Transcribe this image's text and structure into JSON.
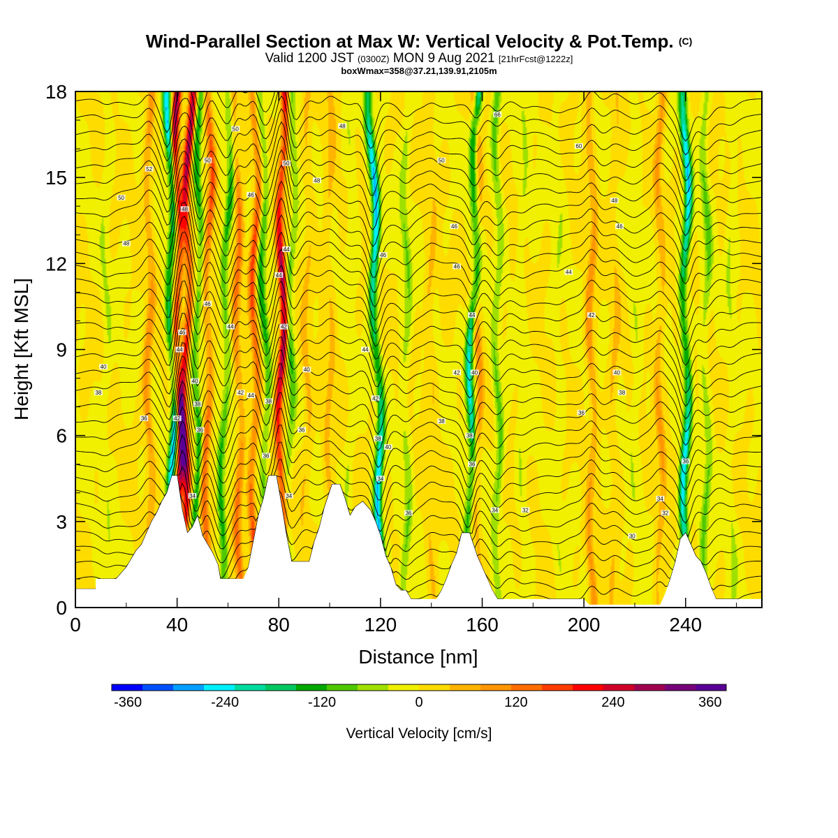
{
  "title": {
    "line1": "Wind-Parallel Section at Max W: Vertical Velocity & Pot.Temp.",
    "copyright_mark": "(C)",
    "line2_a": "Valid 1200 JST",
    "line2_b": "(0300Z)",
    "line2_c": "MON 9 Aug 2021",
    "line2_d": "[21hrFcst@1222z]",
    "line3": "boxWmax=358@37.21,139.91,2105m"
  },
  "chart_data": {
    "type": "heatmap",
    "xlabel": "Distance [nm]",
    "ylabel": "Height [Kft MSL]",
    "xlim": [
      0,
      270
    ],
    "ylim": [
      0,
      18
    ],
    "x_ticks": [
      "0",
      "40",
      "80",
      "120",
      "160",
      "200",
      "240"
    ],
    "y_ticks": [
      "0",
      "3",
      "6",
      "9",
      "12",
      "15",
      "18"
    ],
    "colorbar": {
      "label": "Vertical Velocity [cm/s]",
      "range": [
        -380,
        380
      ],
      "tick_labels": [
        "-360",
        "-240",
        "-120",
        "0",
        "120",
        "240",
        "360"
      ],
      "colors": [
        "#0000ff",
        "#0050ff",
        "#00a0ff",
        "#00f0ff",
        "#00dca0",
        "#00c860",
        "#00a800",
        "#50c800",
        "#a0e000",
        "#f0f000",
        "#ffdc00",
        "#ffb400",
        "#ff9600",
        "#ff6e00",
        "#ff3c00",
        "#ff0000",
        "#d20028",
        "#a00050",
        "#780078",
        "#5a0096"
      ]
    },
    "terrain_kft": [
      [
        0,
        0.65
      ],
      [
        8,
        0.65
      ],
      [
        8,
        1.0
      ],
      [
        16,
        1.0
      ],
      [
        18,
        1.2
      ],
      [
        20,
        1.4
      ],
      [
        22,
        1.7
      ],
      [
        24,
        2.0
      ],
      [
        26,
        2.2
      ],
      [
        28,
        2.6
      ],
      [
        30,
        3.0
      ],
      [
        32,
        3.3
      ],
      [
        34,
        3.7
      ],
      [
        36,
        4.0
      ],
      [
        38,
        4.6
      ],
      [
        40,
        4.6
      ],
      [
        42,
        3.4
      ],
      [
        44,
        2.6
      ],
      [
        46,
        2.8
      ],
      [
        48,
        3.2
      ],
      [
        50,
        2.5
      ],
      [
        52,
        2.2
      ],
      [
        54,
        1.9
      ],
      [
        56,
        1.5
      ],
      [
        57,
        1.0
      ],
      [
        58,
        1.0
      ],
      [
        66,
        1.0
      ],
      [
        68,
        1.4
      ],
      [
        70,
        2.3
      ],
      [
        72,
        3.2
      ],
      [
        74,
        3.8
      ],
      [
        76,
        4.6
      ],
      [
        79,
        4.6
      ],
      [
        81,
        3.6
      ],
      [
        83,
        2.5
      ],
      [
        85,
        1.6
      ],
      [
        86,
        1.6
      ],
      [
        92,
        1.6
      ],
      [
        94,
        2.3
      ],
      [
        96,
        2.8
      ],
      [
        98,
        3.5
      ],
      [
        101,
        4.3
      ],
      [
        104,
        4.3
      ],
      [
        106,
        3.8
      ],
      [
        108,
        3.2
      ],
      [
        110,
        3.5
      ],
      [
        113,
        3.7
      ],
      [
        116,
        3.4
      ],
      [
        118,
        3.0
      ],
      [
        120,
        2.5
      ],
      [
        122,
        1.8
      ],
      [
        124,
        1.4
      ],
      [
        126,
        0.8
      ],
      [
        128,
        0.6
      ],
      [
        130,
        0.6
      ],
      [
        132,
        0.3
      ],
      [
        142,
        0.3
      ],
      [
        144,
        0.6
      ],
      [
        146,
        1.0
      ],
      [
        148,
        1.5
      ],
      [
        150,
        1.9
      ],
      [
        152,
        2.6
      ],
      [
        155,
        2.6
      ],
      [
        158,
        1.8
      ],
      [
        162,
        1.0
      ],
      [
        164,
        0.6
      ],
      [
        166,
        0.3
      ],
      [
        200,
        0.3
      ],
      [
        202,
        0.1
      ],
      [
        230,
        0.1
      ],
      [
        232,
        0.5
      ],
      [
        234,
        1.0
      ],
      [
        236,
        1.6
      ],
      [
        238,
        2.4
      ],
      [
        240,
        2.6
      ],
      [
        242,
        2.2
      ],
      [
        244,
        1.8
      ],
      [
        246,
        1.6
      ],
      [
        248,
        1.2
      ],
      [
        250,
        0.7
      ],
      [
        252,
        0.3
      ],
      [
        270,
        0.3
      ]
    ],
    "updraft_bands": [
      {
        "x_bottom": 40.5,
        "x_top": 40.0,
        "w": 300
      },
      {
        "x_bottom": 42.0,
        "x_top": 45.0,
        "w": 290
      },
      {
        "x_bottom": 51.0,
        "x_top": 53.0,
        "w": 160
      },
      {
        "x_bottom": 65.0,
        "x_top": 63.0,
        "w": 140
      },
      {
        "x_bottom": 70.0,
        "x_top": 71.0,
        "w": 180
      },
      {
        "x_bottom": 80.5,
        "x_top": 81.5,
        "w": 330
      },
      {
        "x_bottom": 29.0,
        "x_top": 29.0,
        "w": 110
      },
      {
        "x_bottom": 203.0,
        "x_top": 203.0,
        "w": 110
      },
      {
        "x_bottom": 158.0,
        "x_top": 158.0,
        "w": 100
      },
      {
        "x_bottom": 90.0,
        "x_top": 92.0,
        "w": 60
      },
      {
        "x_bottom": 140.0,
        "x_top": 140.0,
        "w": 50
      },
      {
        "x_bottom": 100.0,
        "x_top": 100.0,
        "w": 60
      },
      {
        "x_bottom": 212.0,
        "x_top": 212.0,
        "w": 50
      },
      {
        "x_bottom": 230.0,
        "x_top": 230.0,
        "w": 90
      }
    ],
    "downdraft_bands": [
      {
        "x_bottom": 39.0,
        "x_top": 37.0,
        "w": -280
      },
      {
        "x_bottom": 47.0,
        "x_top": 49.0,
        "w": -150
      },
      {
        "x_bottom": 57.0,
        "x_top": 61.0,
        "w": -140
      },
      {
        "x_bottom": 76.0,
        "x_top": 73.0,
        "w": -140
      },
      {
        "x_bottom": 83.0,
        "x_top": 86.0,
        "w": -120
      },
      {
        "x_bottom": 121.0,
        "x_top": 116.0,
        "w": -280
      },
      {
        "x_bottom": 154.0,
        "x_top": 158.0,
        "w": -240
      },
      {
        "x_bottom": 240.0,
        "x_top": 240.0,
        "w": -260
      },
      {
        "x_bottom": 166.0,
        "x_top": 166.0,
        "w": -100
      },
      {
        "x_bottom": 130.0,
        "x_top": 130.0,
        "w": -80
      },
      {
        "x_bottom": 248.0,
        "x_top": 248.0,
        "w": -90
      },
      {
        "x_bottom": 12.0,
        "x_top": 12.0,
        "w": -40
      },
      {
        "x_bottom": 176.0,
        "x_top": 176.0,
        "w": -40
      },
      {
        "x_bottom": 220.0,
        "x_top": 220.0,
        "w": -40
      },
      {
        "x_bottom": 258.0,
        "x_top": 258.0,
        "w": -40
      },
      {
        "x_bottom": 108.0,
        "x_top": 108.0,
        "w": -40
      },
      {
        "x_bottom": 190.0,
        "x_top": 190.0,
        "w": -30
      }
    ],
    "theta_contour_labels": [
      {
        "x": 27,
        "y": 6.6,
        "text": "36"
      },
      {
        "x": 9,
        "y": 7.5,
        "text": "38"
      },
      {
        "x": 11,
        "y": 8.4,
        "text": "40"
      },
      {
        "x": 20,
        "y": 12.7,
        "text": "48"
      },
      {
        "x": 18,
        "y": 14.3,
        "text": "50"
      },
      {
        "x": 29,
        "y": 15.3,
        "text": "52"
      },
      {
        "x": 40,
        "y": 6.6,
        "text": "42"
      },
      {
        "x": 41,
        "y": 9.0,
        "text": "44"
      },
      {
        "x": 42,
        "y": 9.6,
        "text": "46"
      },
      {
        "x": 43,
        "y": 13.9,
        "text": "48"
      },
      {
        "x": 47,
        "y": 7.9,
        "text": "40"
      },
      {
        "x": 48,
        "y": 7.1,
        "text": "38"
      },
      {
        "x": 49,
        "y": 6.2,
        "text": "36"
      },
      {
        "x": 46,
        "y": 3.9,
        "text": "34"
      },
      {
        "x": 52,
        "y": 10.6,
        "text": "46"
      },
      {
        "x": 52,
        "y": 15.6,
        "text": "50"
      },
      {
        "x": 61,
        "y": 9.8,
        "text": "44"
      },
      {
        "x": 65,
        "y": 7.5,
        "text": "42"
      },
      {
        "x": 69,
        "y": 7.4,
        "text": "44"
      },
      {
        "x": 69,
        "y": 14.4,
        "text": "46"
      },
      {
        "x": 63,
        "y": 16.7,
        "text": "50"
      },
      {
        "x": 76,
        "y": 7.2,
        "text": "38"
      },
      {
        "x": 75,
        "y": 5.3,
        "text": "36"
      },
      {
        "x": 80,
        "y": 11.6,
        "text": "44"
      },
      {
        "x": 83,
        "y": 12.5,
        "text": "44"
      },
      {
        "x": 82,
        "y": 9.8,
        "text": "42"
      },
      {
        "x": 83,
        "y": 15.5,
        "text": "50"
      },
      {
        "x": 84,
        "y": 3.9,
        "text": "34"
      },
      {
        "x": 89,
        "y": 6.2,
        "text": "36"
      },
      {
        "x": 91,
        "y": 8.3,
        "text": "40"
      },
      {
        "x": 95,
        "y": 14.9,
        "text": "48"
      },
      {
        "x": 105,
        "y": 16.8,
        "text": "48"
      },
      {
        "x": 114,
        "y": 9.0,
        "text": "44"
      },
      {
        "x": 118,
        "y": 7.3,
        "text": "42"
      },
      {
        "x": 119,
        "y": 5.9,
        "text": "38"
      },
      {
        "x": 120,
        "y": 4.5,
        "text": "34"
      },
      {
        "x": 123,
        "y": 5.6,
        "text": "40"
      },
      {
        "x": 131,
        "y": 3.3,
        "text": "36"
      },
      {
        "x": 121,
        "y": 12.3,
        "text": "46"
      },
      {
        "x": 144,
        "y": 6.5,
        "text": "38"
      },
      {
        "x": 150,
        "y": 8.2,
        "text": "42"
      },
      {
        "x": 150,
        "y": 11.9,
        "text": "46"
      },
      {
        "x": 149,
        "y": 13.3,
        "text": "46"
      },
      {
        "x": 144,
        "y": 15.6,
        "text": "50"
      },
      {
        "x": 155,
        "y": 6.0,
        "text": "38"
      },
      {
        "x": 156,
        "y": 5.0,
        "text": "36"
      },
      {
        "x": 157,
        "y": 8.2,
        "text": "40"
      },
      {
        "x": 156,
        "y": 10.2,
        "text": "44"
      },
      {
        "x": 165,
        "y": 3.4,
        "text": "34"
      },
      {
        "x": 166,
        "y": 17.2,
        "text": "66"
      },
      {
        "x": 177,
        "y": 3.4,
        "text": "32"
      },
      {
        "x": 194,
        "y": 11.7,
        "text": "44"
      },
      {
        "x": 199,
        "y": 6.8,
        "text": "36"
      },
      {
        "x": 203,
        "y": 10.2,
        "text": "42"
      },
      {
        "x": 198,
        "y": 16.1,
        "text": "60"
      },
      {
        "x": 212,
        "y": 14.2,
        "text": "48"
      },
      {
        "x": 214,
        "y": 13.3,
        "text": "46"
      },
      {
        "x": 213,
        "y": 8.2,
        "text": "40"
      },
      {
        "x": 215,
        "y": 7.5,
        "text": "38"
      },
      {
        "x": 219,
        "y": 2.5,
        "text": "30"
      },
      {
        "x": 230,
        "y": 3.8,
        "text": "34"
      },
      {
        "x": 232,
        "y": 3.3,
        "text": "32"
      },
      {
        "x": 240,
        "y": 5.1,
        "text": "36"
      }
    ]
  }
}
